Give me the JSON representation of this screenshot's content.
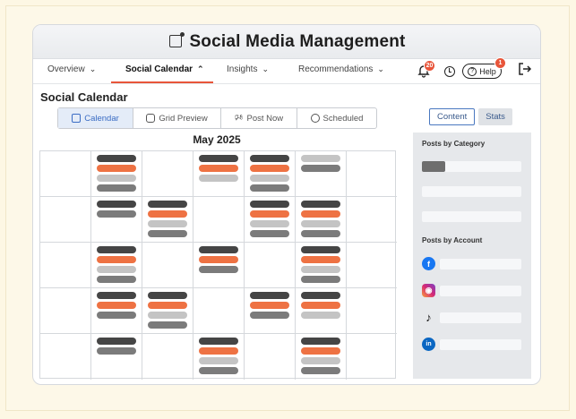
{
  "app": {
    "title": "Social Media Management",
    "title_icon": "social-badge-icon"
  },
  "nav": {
    "items": [
      {
        "label": "Overview",
        "icon": "chevron-down-icon",
        "active": false
      },
      {
        "label": "Social Calendar",
        "icon": "chevron-up-icon",
        "active": true
      },
      {
        "label": "Insights",
        "icon": "chevron-down-icon",
        "active": false
      },
      {
        "label": "Recommendations",
        "icon": "chevron-down-icon",
        "active": false
      }
    ],
    "notifications_count": "20",
    "help_label": "Help",
    "help_badge": "1",
    "accent": "#e8553a"
  },
  "page": {
    "title": "Social Calendar",
    "view_tabs": [
      {
        "label": "Calendar",
        "icon": "calendar-icon",
        "active": true
      },
      {
        "label": "Grid Preview",
        "icon": "instagram-icon",
        "active": false
      },
      {
        "label": "Post Now",
        "icon": "megaphone-icon",
        "active": false
      },
      {
        "label": "Scheduled",
        "icon": "clock-icon",
        "active": false
      }
    ],
    "month": "May 2025"
  },
  "calendar": {
    "colors": {
      "d": "#454545",
      "o": "#ee7243",
      "l": "#c4c4c4",
      "m": "#7b7b7b"
    },
    "cells": [
      [
        [],
        [
          "d",
          "o",
          "l",
          "m"
        ],
        [],
        [
          "d",
          "o",
          "l"
        ],
        [
          "d",
          "o",
          "l",
          "m"
        ],
        [
          "l",
          "m"
        ],
        []
      ],
      [
        [],
        [
          "d",
          "m"
        ],
        [
          "d",
          "o",
          "l",
          "m"
        ],
        [],
        [
          "d",
          "o",
          "l",
          "m"
        ],
        [
          "d",
          "o",
          "l",
          "m"
        ],
        []
      ],
      [
        [],
        [
          "d",
          "o",
          "l",
          "m"
        ],
        [],
        [
          "d",
          "o",
          "m"
        ],
        [],
        [
          "d",
          "o",
          "l",
          "m"
        ],
        []
      ],
      [
        [],
        [
          "d",
          "o",
          "m"
        ],
        [
          "d",
          "o",
          "l",
          "m"
        ],
        [],
        [
          "d",
          "o",
          "m"
        ],
        [
          "d",
          "o",
          "l"
        ],
        []
      ],
      [
        [],
        [
          "d",
          "m"
        ],
        [],
        [
          "d",
          "o",
          "l",
          "m"
        ],
        [],
        [
          "d",
          "o",
          "l",
          "m"
        ],
        []
      ]
    ]
  },
  "side": {
    "tabs": [
      {
        "label": "Content",
        "active": true
      },
      {
        "label": "Stats",
        "active": false
      }
    ],
    "posts_by_category": {
      "heading": "Posts by Category",
      "fills": [
        0.23,
        0,
        0
      ]
    },
    "posts_by_account": {
      "heading": "Posts by Account",
      "accounts": [
        {
          "icon": "facebook-icon",
          "glyph": "f",
          "color": "#1877f2",
          "fill": 0
        },
        {
          "icon": "instagram-icon",
          "glyph": "◎",
          "color": "#d62976",
          "fill": 0
        },
        {
          "icon": "tiktok-icon",
          "glyph": "♪",
          "color": "#111111",
          "fill": 0
        },
        {
          "icon": "linkedin-icon",
          "glyph": "in",
          "color": "#0a66c2",
          "fill": 0
        }
      ]
    }
  }
}
